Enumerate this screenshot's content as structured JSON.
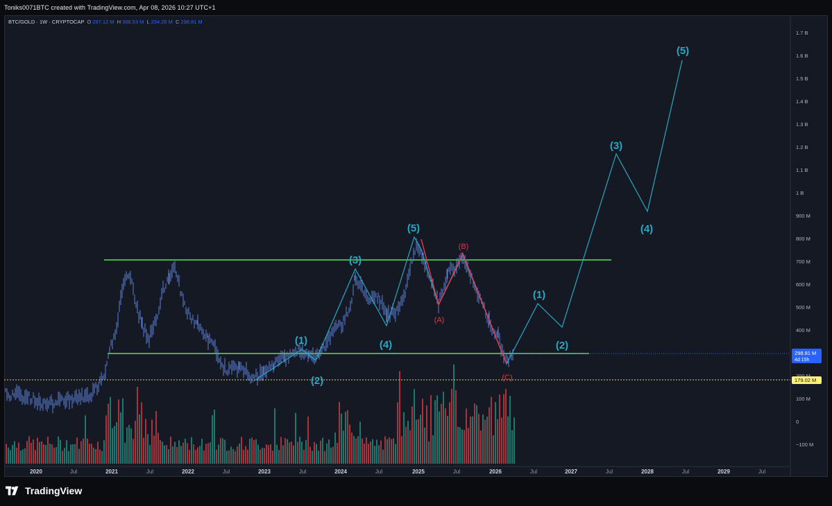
{
  "header": {
    "credit": "Toniks0071BTC created with TradingView.com, Apr 08, 2026 10:27 UTC+1"
  },
  "symbol": {
    "name": "BTC/GOLD · 1W · CRYPTOCAP",
    "open_label": "O",
    "open": "297.12 M",
    "high_label": "H",
    "high": "308.53 M",
    "low_label": "L",
    "low": "294.26 M",
    "close_label": "C",
    "close": "298.81 M"
  },
  "price_axis": {
    "ticks": [
      "1.7 B",
      "1.6 B",
      "1.5 B",
      "1.4 B",
      "1.3 B",
      "1.2 B",
      "1.1 B",
      "1 B",
      "900 M",
      "800 M",
      "700 M",
      "600 M",
      "500 M",
      "400 M",
      "200 M",
      "100 M",
      "0",
      "−100 M"
    ],
    "last_price": "298.81 M",
    "countdown": "4d 15h",
    "level_price": "179.02 M"
  },
  "time_axis": {
    "labels": [
      "2020",
      "Jul",
      "2021",
      "Jul",
      "2022",
      "Jul",
      "2023",
      "Jul",
      "2024",
      "Jul",
      "2025",
      "Jul",
      "2026",
      "Jul",
      "2027",
      "Jul",
      "2028",
      "Jul",
      "2029",
      "Jul"
    ]
  },
  "annotations": {
    "wave_labels": [
      "(1)",
      "(2)",
      "(3)",
      "(4)",
      "(5)",
      "(1)",
      "(2)",
      "(3)",
      "(4)",
      "(5)"
    ],
    "corrective_labels": [
      "(A)",
      "(B)",
      "(C)"
    ]
  },
  "colors": {
    "background": "#151924",
    "candle_blue": "#5b7fd9",
    "wave_cyan": "#29a8c4",
    "corrective_red": "#e0384a",
    "support_green": "#4caf50",
    "volume_red": "#c23a43",
    "volume_green": "#1f8a7a",
    "last_price_badge": "#2962ff",
    "level_badge": "#fff176"
  },
  "footer": {
    "brand": "TradingView"
  }
}
